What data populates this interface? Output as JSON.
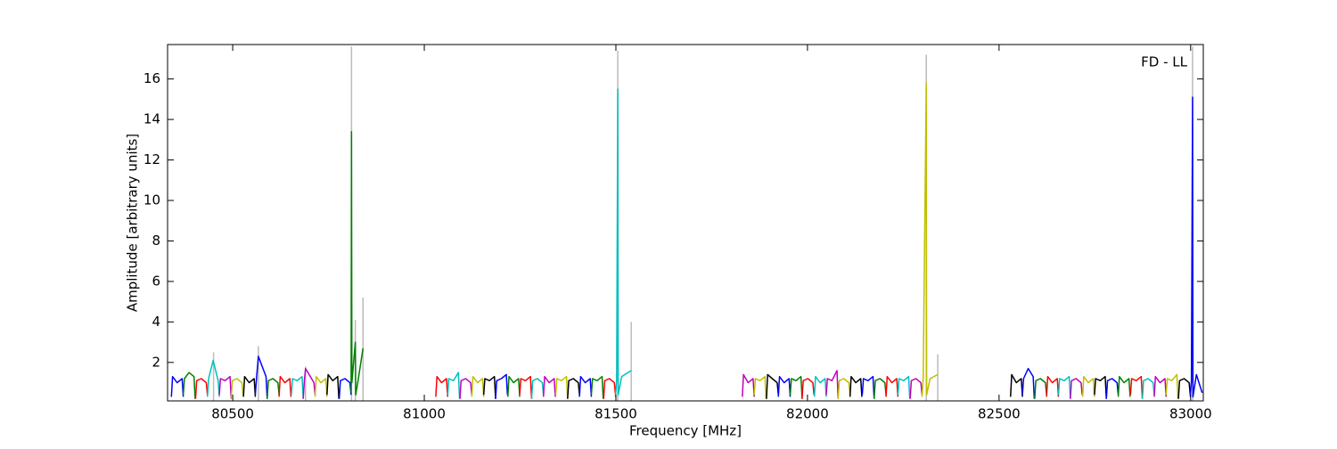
{
  "chart_data": {
    "type": "line",
    "annotation": "FD - LL",
    "xlabel": "Frequency [MHz]",
    "ylabel": "Amplitude [arbitrary units]",
    "xlim": [
      80330,
      83033
    ],
    "ylim": [
      0.1,
      17.7
    ],
    "xticks": [
      80500,
      81000,
      81500,
      82000,
      82500,
      83000
    ],
    "yticks": [
      2,
      4,
      6,
      8,
      10,
      12,
      14,
      16
    ],
    "peaks": {
      "color": "#bbbbbb",
      "x": [
        80450,
        80567,
        80690,
        80810,
        80820,
        80840,
        81505,
        81540,
        82310,
        82340,
        83005
      ],
      "values": [
        2.5,
        2.8,
        1.8,
        17.6,
        4.1,
        5.2,
        17.4,
        4.0,
        17.2,
        2.4,
        17.6
      ]
    },
    "series": [
      {
        "color": "#0000ff",
        "x": [
          80340,
          80343,
          80355,
          80368,
          80371
        ],
        "values": [
          0.3,
          1.3,
          1.0,
          1.2,
          0.3
        ]
      },
      {
        "color": "#008000",
        "x": [
          80371,
          80374,
          80386,
          80399,
          80402
        ],
        "values": [
          0.4,
          1.2,
          1.5,
          1.3,
          0.2
        ]
      },
      {
        "color": "#ff0000",
        "x": [
          80403,
          80406,
          80418,
          80431,
          80434
        ],
        "values": [
          0.2,
          1.1,
          1.2,
          1.0,
          0.4
        ]
      },
      {
        "color": "#00bfbf",
        "x": [
          80434,
          80437,
          80449,
          80462,
          80465
        ],
        "values": [
          0.3,
          1.2,
          2.1,
          1.1,
          0.3
        ]
      },
      {
        "color": "#bf00bf",
        "x": [
          80465,
          80468,
          80480,
          80493,
          80496
        ],
        "values": [
          0.4,
          1.2,
          1.1,
          1.3,
          0.2
        ]
      },
      {
        "color": "#bfbf00",
        "x": [
          80496,
          80499,
          80511,
          80524,
          80527
        ],
        "values": [
          0.2,
          1.1,
          1.2,
          1.0,
          0.4
        ]
      },
      {
        "color": "#000000",
        "x": [
          80528,
          80531,
          80543,
          80556,
          80559
        ],
        "values": [
          0.3,
          1.3,
          1.0,
          1.2,
          0.3
        ]
      },
      {
        "color": "#0000ff",
        "x": [
          80559,
          80562,
          80567,
          80587,
          80590
        ],
        "values": [
          0.4,
          1.2,
          2.3,
          1.3,
          0.2
        ]
      },
      {
        "color": "#008000",
        "x": [
          80590,
          80593,
          80605,
          80618,
          80621
        ],
        "values": [
          0.2,
          1.1,
          1.2,
          1.0,
          0.4
        ]
      },
      {
        "color": "#ff0000",
        "x": [
          80621,
          80624,
          80636,
          80649,
          80652
        ],
        "values": [
          0.3,
          1.3,
          1.0,
          1.2,
          0.3
        ]
      },
      {
        "color": "#00bfbf",
        "x": [
          80653,
          80656,
          80668,
          80681,
          80684
        ],
        "values": [
          0.4,
          1.2,
          1.1,
          1.3,
          0.2
        ]
      },
      {
        "color": "#bf00bf",
        "x": [
          80684,
          80687,
          80690,
          80712,
          80715
        ],
        "values": [
          0.2,
          1.1,
          1.7,
          1.0,
          0.4
        ]
      },
      {
        "color": "#bfbf00",
        "x": [
          80715,
          80718,
          80730,
          80743,
          80746
        ],
        "values": [
          0.3,
          1.3,
          1.0,
          1.2,
          0.3
        ]
      },
      {
        "color": "#000000",
        "x": [
          80746,
          80749,
          80761,
          80774,
          80777
        ],
        "values": [
          0.4,
          1.4,
          1.1,
          1.3,
          0.2
        ]
      },
      {
        "color": "#0000ff",
        "x": [
          80778,
          80781,
          80793,
          80806,
          80809
        ],
        "values": [
          0.2,
          1.1,
          1.2,
          1.0,
          0.4
        ]
      },
      {
        "color": "#008000",
        "x": [
          80809,
          80810,
          80811,
          80820,
          80821,
          80828,
          80840
        ],
        "values": [
          0.5,
          13.4,
          1.0,
          3.0,
          0.4,
          1.2,
          2.7
        ]
      },
      {
        "color": "#ff0000",
        "x": [
          81030,
          81033,
          81045,
          81058,
          81061
        ],
        "values": [
          0.3,
          1.3,
          1.0,
          1.2,
          0.3
        ]
      },
      {
        "color": "#00bfbf",
        "x": [
          81061,
          81064,
          81076,
          81089,
          81092
        ],
        "values": [
          0.4,
          1.2,
          1.1,
          1.5,
          0.2
        ]
      },
      {
        "color": "#bf00bf",
        "x": [
          81093,
          81096,
          81108,
          81121,
          81124
        ],
        "values": [
          0.2,
          1.1,
          1.2,
          1.0,
          0.4
        ]
      },
      {
        "color": "#bfbf00",
        "x": [
          81124,
          81127,
          81139,
          81152,
          81155
        ],
        "values": [
          0.3,
          1.3,
          1.0,
          1.2,
          0.3
        ]
      },
      {
        "color": "#000000",
        "x": [
          81155,
          81158,
          81170,
          81183,
          81186
        ],
        "values": [
          0.4,
          1.2,
          1.1,
          1.3,
          0.2
        ]
      },
      {
        "color": "#0000ff",
        "x": [
          81186,
          81189,
          81201,
          81214,
          81217
        ],
        "values": [
          0.2,
          1.1,
          1.2,
          1.4,
          0.4
        ]
      },
      {
        "color": "#008000",
        "x": [
          81218,
          81221,
          81233,
          81246,
          81249
        ],
        "values": [
          0.3,
          1.3,
          1.0,
          1.2,
          0.3
        ]
      },
      {
        "color": "#ff0000",
        "x": [
          81249,
          81252,
          81264,
          81277,
          81280
        ],
        "values": [
          0.4,
          1.2,
          1.1,
          1.3,
          0.2
        ]
      },
      {
        "color": "#00bfbf",
        "x": [
          81280,
          81283,
          81295,
          81308,
          81311
        ],
        "values": [
          0.2,
          1.1,
          1.2,
          1.0,
          0.4
        ]
      },
      {
        "color": "#bf00bf",
        "x": [
          81311,
          81314,
          81326,
          81339,
          81342
        ],
        "values": [
          0.3,
          1.3,
          1.0,
          1.2,
          0.3
        ]
      },
      {
        "color": "#bfbf00",
        "x": [
          81343,
          81346,
          81358,
          81371,
          81374
        ],
        "values": [
          0.4,
          1.2,
          1.1,
          1.3,
          0.2
        ]
      },
      {
        "color": "#000000",
        "x": [
          81374,
          81377,
          81389,
          81402,
          81405
        ],
        "values": [
          0.2,
          1.1,
          1.2,
          1.0,
          0.4
        ]
      },
      {
        "color": "#0000ff",
        "x": [
          81405,
          81408,
          81420,
          81433,
          81436
        ],
        "values": [
          0.3,
          1.3,
          1.0,
          1.2,
          0.3
        ]
      },
      {
        "color": "#008000",
        "x": [
          81436,
          81439,
          81451,
          81464,
          81467
        ],
        "values": [
          0.4,
          1.2,
          1.1,
          1.3,
          0.2
        ]
      },
      {
        "color": "#ff0000",
        "x": [
          81468,
          81471,
          81483,
          81496,
          81499
        ],
        "values": [
          0.2,
          1.1,
          1.2,
          1.0,
          0.4
        ]
      },
      {
        "color": "#00bfbf",
        "x": [
          81499,
          81502,
          81505,
          81506,
          81515,
          81540
        ],
        "values": [
          0.3,
          1.2,
          15.5,
          0.4,
          1.3,
          1.6
        ]
      },
      {
        "color": "#bf00bf",
        "x": [
          81830,
          81833,
          81845,
          81858,
          81861
        ],
        "values": [
          0.3,
          1.4,
          1.0,
          1.2,
          0.3
        ]
      },
      {
        "color": "#bfbf00",
        "x": [
          81861,
          81864,
          81876,
          81889,
          81892
        ],
        "values": [
          0.4,
          1.2,
          1.1,
          1.3,
          0.2
        ]
      },
      {
        "color": "#000000",
        "x": [
          81893,
          81896,
          81908,
          81921,
          81924
        ],
        "values": [
          0.2,
          1.4,
          1.2,
          1.0,
          0.4
        ]
      },
      {
        "color": "#0000ff",
        "x": [
          81924,
          81927,
          81939,
          81952,
          81955
        ],
        "values": [
          0.3,
          1.3,
          1.0,
          1.2,
          0.3
        ]
      },
      {
        "color": "#008000",
        "x": [
          81955,
          81958,
          81970,
          81983,
          81986
        ],
        "values": [
          0.4,
          1.2,
          1.1,
          1.3,
          0.2
        ]
      },
      {
        "color": "#ff0000",
        "x": [
          81986,
          81989,
          82001,
          82014,
          82017
        ],
        "values": [
          0.2,
          1.1,
          1.2,
          1.0,
          0.4
        ]
      },
      {
        "color": "#00bfbf",
        "x": [
          82018,
          82021,
          82033,
          82046,
          82049
        ],
        "values": [
          0.3,
          1.3,
          1.0,
          1.2,
          0.3
        ]
      },
      {
        "color": "#bf00bf",
        "x": [
          82049,
          82052,
          82064,
          82077,
          82080
        ],
        "values": [
          0.4,
          1.2,
          1.1,
          1.6,
          0.2
        ]
      },
      {
        "color": "#bfbf00",
        "x": [
          82080,
          82083,
          82095,
          82108,
          82111
        ],
        "values": [
          0.2,
          1.1,
          1.2,
          1.0,
          0.4
        ]
      },
      {
        "color": "#000000",
        "x": [
          82111,
          82114,
          82126,
          82139,
          82142
        ],
        "values": [
          0.3,
          1.3,
          1.0,
          1.2,
          0.3
        ]
      },
      {
        "color": "#0000ff",
        "x": [
          82143,
          82146,
          82158,
          82171,
          82174
        ],
        "values": [
          0.4,
          1.2,
          1.1,
          1.3,
          0.2
        ]
      },
      {
        "color": "#008000",
        "x": [
          82174,
          82177,
          82189,
          82202,
          82205
        ],
        "values": [
          0.2,
          1.1,
          1.2,
          1.0,
          0.4
        ]
      },
      {
        "color": "#ff0000",
        "x": [
          82205,
          82208,
          82220,
          82233,
          82236
        ],
        "values": [
          0.3,
          1.3,
          1.0,
          1.2,
          0.3
        ]
      },
      {
        "color": "#00bfbf",
        "x": [
          82236,
          82239,
          82251,
          82264,
          82267
        ],
        "values": [
          0.4,
          1.2,
          1.1,
          1.3,
          0.2
        ]
      },
      {
        "color": "#bf00bf",
        "x": [
          82268,
          82271,
          82283,
          82296,
          82299
        ],
        "values": [
          0.2,
          1.1,
          1.2,
          1.0,
          0.4
        ]
      },
      {
        "color": "#bfbf00",
        "x": [
          82299,
          82302,
          82310,
          82311,
          82320,
          82340
        ],
        "values": [
          0.3,
          1.2,
          15.8,
          0.4,
          1.2,
          1.4
        ]
      },
      {
        "color": "#000000",
        "x": [
          82530,
          82533,
          82545,
          82558,
          82561
        ],
        "values": [
          0.3,
          1.4,
          1.0,
          1.2,
          0.3
        ]
      },
      {
        "color": "#0000ff",
        "x": [
          82561,
          82564,
          82576,
          82589,
          82592
        ],
        "values": [
          0.4,
          1.2,
          1.7,
          1.3,
          0.2
        ]
      },
      {
        "color": "#008000",
        "x": [
          82593,
          82596,
          82608,
          82621,
          82624
        ],
        "values": [
          0.2,
          1.1,
          1.2,
          1.0,
          0.4
        ]
      },
      {
        "color": "#ff0000",
        "x": [
          82624,
          82627,
          82639,
          82652,
          82655
        ],
        "values": [
          0.3,
          1.3,
          1.0,
          1.2,
          0.3
        ]
      },
      {
        "color": "#00bfbf",
        "x": [
          82655,
          82658,
          82670,
          82683,
          82686
        ],
        "values": [
          0.4,
          1.2,
          1.1,
          1.3,
          0.2
        ]
      },
      {
        "color": "#bf00bf",
        "x": [
          82686,
          82689,
          82701,
          82714,
          82717
        ],
        "values": [
          0.2,
          1.1,
          1.2,
          1.0,
          0.4
        ]
      },
      {
        "color": "#bfbf00",
        "x": [
          82718,
          82721,
          82733,
          82746,
          82749
        ],
        "values": [
          0.3,
          1.3,
          1.0,
          1.2,
          0.3
        ]
      },
      {
        "color": "#000000",
        "x": [
          82749,
          82752,
          82764,
          82777,
          82780
        ],
        "values": [
          0.4,
          1.2,
          1.1,
          1.3,
          0.2
        ]
      },
      {
        "color": "#0000ff",
        "x": [
          82780,
          82783,
          82795,
          82808,
          82811
        ],
        "values": [
          0.2,
          1.1,
          1.2,
          1.0,
          0.4
        ]
      },
      {
        "color": "#008000",
        "x": [
          82811,
          82814,
          82826,
          82839,
          82842
        ],
        "values": [
          0.3,
          1.3,
          1.0,
          1.2,
          0.3
        ]
      },
      {
        "color": "#ff0000",
        "x": [
          82843,
          82846,
          82858,
          82871,
          82874
        ],
        "values": [
          0.4,
          1.2,
          1.1,
          1.3,
          0.2
        ]
      },
      {
        "color": "#00bfbf",
        "x": [
          82874,
          82877,
          82889,
          82902,
          82905
        ],
        "values": [
          0.2,
          1.1,
          1.2,
          1.0,
          0.4
        ]
      },
      {
        "color": "#bf00bf",
        "x": [
          82905,
          82908,
          82920,
          82933,
          82936
        ],
        "values": [
          0.3,
          1.3,
          1.0,
          1.2,
          0.3
        ]
      },
      {
        "color": "#bfbf00",
        "x": [
          82936,
          82939,
          82951,
          82964,
          82967
        ],
        "values": [
          0.4,
          1.2,
          1.1,
          1.4,
          0.2
        ]
      },
      {
        "color": "#000000",
        "x": [
          82968,
          82971,
          82983,
          82996,
          82999
        ],
        "values": [
          0.2,
          1.1,
          1.2,
          1.0,
          0.4
        ]
      },
      {
        "color": "#0000ff",
        "x": [
          82999,
          83002,
          83005,
          83006,
          83015,
          83030
        ],
        "values": [
          0.3,
          1.1,
          15.1,
          0.3,
          1.4,
          0.5
        ]
      }
    ]
  }
}
